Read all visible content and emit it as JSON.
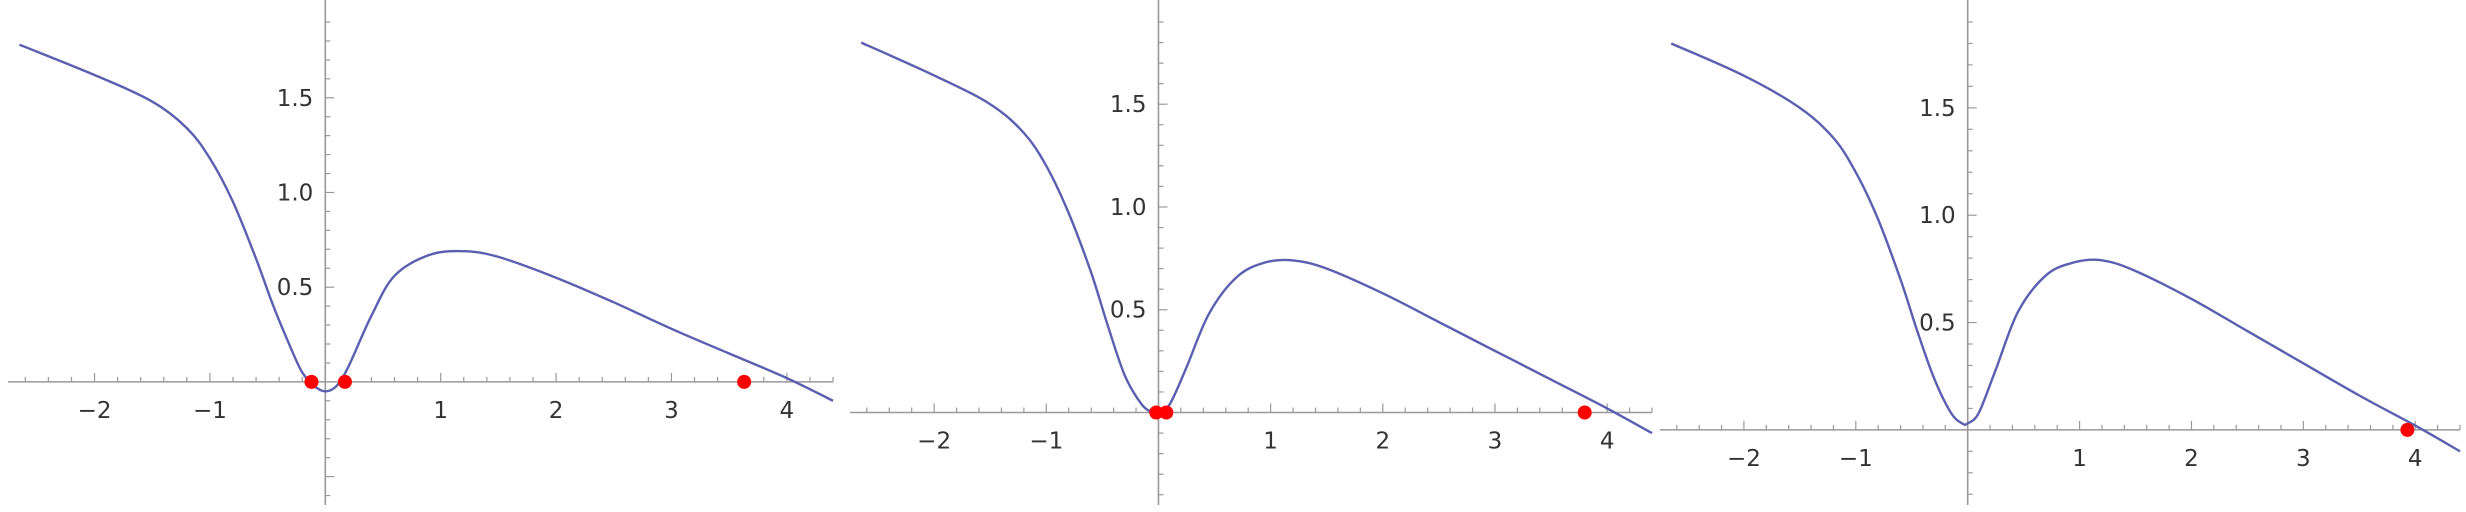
{
  "colors": {
    "curve": "#5a5fb0",
    "axis": "#999999",
    "marker": "#ff0000",
    "text": "#333333"
  },
  "chart_data": [
    {
      "type": "line",
      "xlim": [
        -2.75,
        4.4
      ],
      "ylim": [
        -0.65,
        1.9
      ],
      "x_ticks": [
        -2,
        -1,
        1,
        2,
        3,
        4
      ],
      "x_tick_labels": [
        "−2",
        "−1",
        "1",
        "2",
        "3",
        "4"
      ],
      "y_ticks": [
        0.5,
        1.0,
        1.5
      ],
      "y_tick_labels": [
        "0.5",
        "1.0",
        "1.5"
      ],
      "series": [
        {
          "x": [
            -2.65,
            -2.0,
            -1.5,
            -1.2,
            -1.0,
            -0.8,
            -0.6,
            -0.45,
            -0.3,
            -0.2,
            -0.1,
            0.0,
            0.1,
            0.2,
            0.4,
            0.6,
            0.9,
            1.2,
            1.5,
            2.0,
            2.5,
            3.0,
            3.5,
            4.0,
            4.4
          ],
          "y": [
            1.78,
            1.62,
            1.48,
            1.34,
            1.18,
            0.95,
            0.65,
            0.4,
            0.18,
            0.05,
            -0.02,
            -0.05,
            -0.02,
            0.08,
            0.35,
            0.56,
            0.67,
            0.69,
            0.66,
            0.55,
            0.42,
            0.28,
            0.15,
            0.02,
            -0.1
          ]
        }
      ],
      "markers": [
        {
          "x": -0.12,
          "y": 0.0
        },
        {
          "x": 0.17,
          "y": 0.0
        },
        {
          "x": 3.63,
          "y": 0.0
        }
      ]
    },
    {
      "type": "line",
      "xlim": [
        -2.75,
        4.4
      ],
      "ylim": [
        -0.45,
        1.9
      ],
      "x_ticks": [
        -2,
        -1,
        1,
        2,
        3,
        4
      ],
      "x_tick_labels": [
        "−2",
        "−1",
        "1",
        "2",
        "3",
        "4"
      ],
      "y_ticks": [
        0.5,
        1.0,
        1.5
      ],
      "y_tick_labels": [
        "0.5",
        "1.0",
        "1.5"
      ],
      "series": [
        {
          "x": [
            -2.65,
            -2.0,
            -1.5,
            -1.2,
            -1.0,
            -0.8,
            -0.6,
            -0.45,
            -0.3,
            -0.15,
            -0.05,
            0.0,
            0.1,
            0.25,
            0.45,
            0.7,
            0.95,
            1.2,
            1.5,
            2.0,
            2.5,
            3.0,
            3.5,
            4.0,
            4.4
          ],
          "y": [
            1.8,
            1.64,
            1.5,
            1.36,
            1.2,
            0.97,
            0.68,
            0.42,
            0.18,
            0.04,
            0.0,
            0.0,
            0.04,
            0.22,
            0.48,
            0.66,
            0.73,
            0.74,
            0.7,
            0.58,
            0.44,
            0.3,
            0.16,
            0.02,
            -0.1
          ]
        }
      ],
      "markers": [
        {
          "x": -0.02,
          "y": 0.0
        },
        {
          "x": 0.07,
          "y": 0.0
        },
        {
          "x": 3.8,
          "y": 0.0
        }
      ]
    },
    {
      "type": "line",
      "xlim": [
        -2.75,
        4.4
      ],
      "ylim": [
        -0.35,
        1.9
      ],
      "x_ticks": [
        -2,
        -1,
        1,
        2,
        3,
        4
      ],
      "x_tick_labels": [
        "−2",
        "−1",
        "1",
        "2",
        "3",
        "4"
      ],
      "y_ticks": [
        0.5,
        1.0,
        1.5
      ],
      "y_tick_labels": [
        "0.5",
        "1.0",
        "1.5"
      ],
      "series": [
        {
          "x": [
            -2.65,
            -2.0,
            -1.5,
            -1.2,
            -1.0,
            -0.8,
            -0.6,
            -0.45,
            -0.3,
            -0.15,
            -0.05,
            0.0,
            0.1,
            0.25,
            0.45,
            0.7,
            0.95,
            1.2,
            1.5,
            2.0,
            2.5,
            3.0,
            3.5,
            4.0,
            4.4
          ],
          "y": [
            1.8,
            1.65,
            1.5,
            1.36,
            1.2,
            0.98,
            0.7,
            0.46,
            0.24,
            0.08,
            0.03,
            0.03,
            0.08,
            0.28,
            0.55,
            0.72,
            0.78,
            0.79,
            0.74,
            0.61,
            0.46,
            0.31,
            0.16,
            0.02,
            -0.1
          ]
        }
      ],
      "markers": [
        {
          "x": 3.93,
          "y": 0.0
        }
      ]
    }
  ]
}
